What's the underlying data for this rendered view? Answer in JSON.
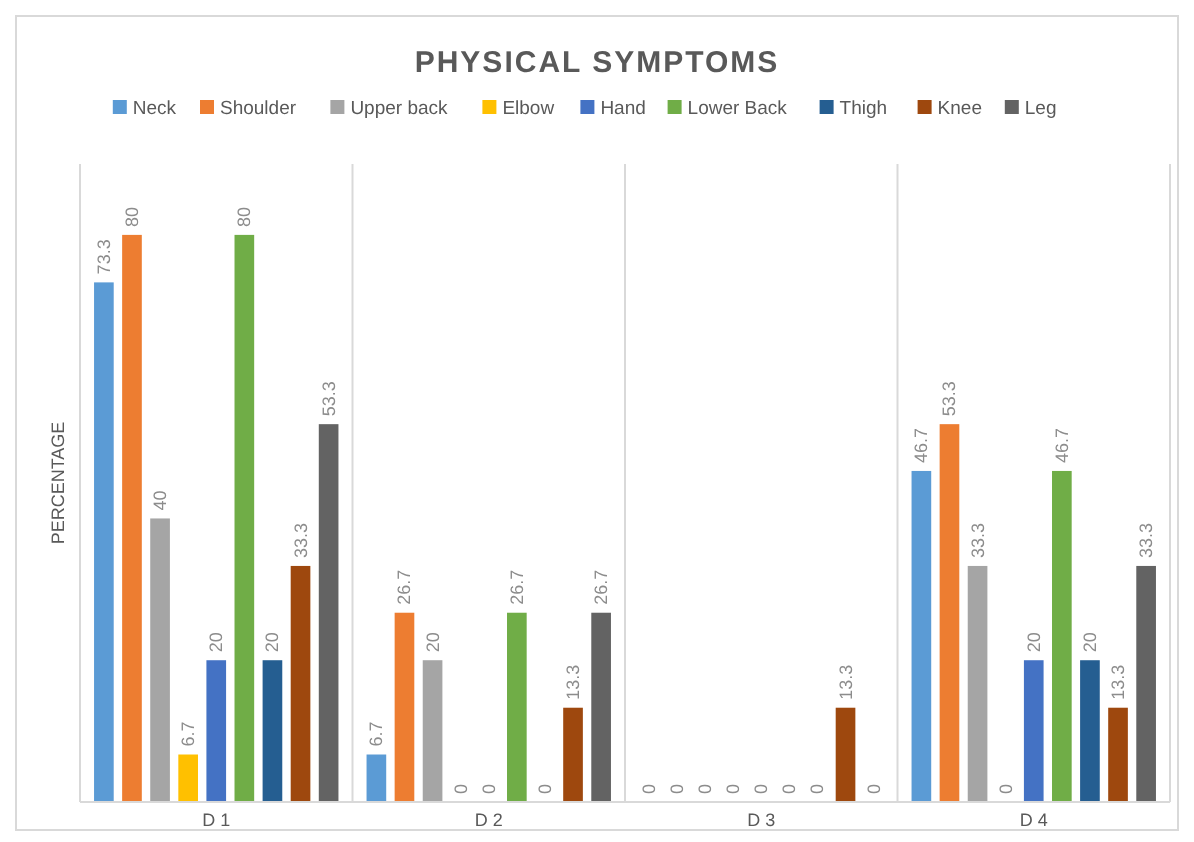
{
  "chart_data": {
    "type": "bar",
    "title": "PHYSICAL SYMPTOMS",
    "ylabel": "PERCENTAGE",
    "categories": [
      "D 1",
      "D 2",
      "D 3",
      "D 4"
    ],
    "ylim": [
      0,
      90
    ],
    "legend": "top",
    "data_labels": true,
    "grid": "x",
    "series": [
      {
        "name": "Neck",
        "color": "#5b9bd5",
        "values": [
          73.3,
          6.7,
          0,
          46.7
        ]
      },
      {
        "name": "Shoulder",
        "color": "#ed7d31",
        "values": [
          80,
          26.7,
          0,
          53.3
        ]
      },
      {
        "name": "Upper back",
        "color": "#a5a5a5",
        "values": [
          40,
          20,
          0,
          33.3
        ]
      },
      {
        "name": "Elbow",
        "color": "#ffc000",
        "values": [
          6.7,
          0,
          0,
          0
        ]
      },
      {
        "name": "Hand",
        "color": "#4472c4",
        "values": [
          20,
          0,
          0,
          20
        ]
      },
      {
        "name": "Lower Back",
        "color": "#70ad47",
        "values": [
          80,
          26.7,
          0,
          46.7
        ]
      },
      {
        "name": "Thigh",
        "color": "#255e91",
        "values": [
          20,
          0,
          0,
          20
        ]
      },
      {
        "name": "Knee",
        "color": "#9e480e",
        "values": [
          33.3,
          13.3,
          13.3,
          13.3
        ]
      },
      {
        "name": "Leg",
        "color": "#636363",
        "values": [
          53.3,
          26.7,
          0,
          33.3
        ]
      }
    ]
  }
}
